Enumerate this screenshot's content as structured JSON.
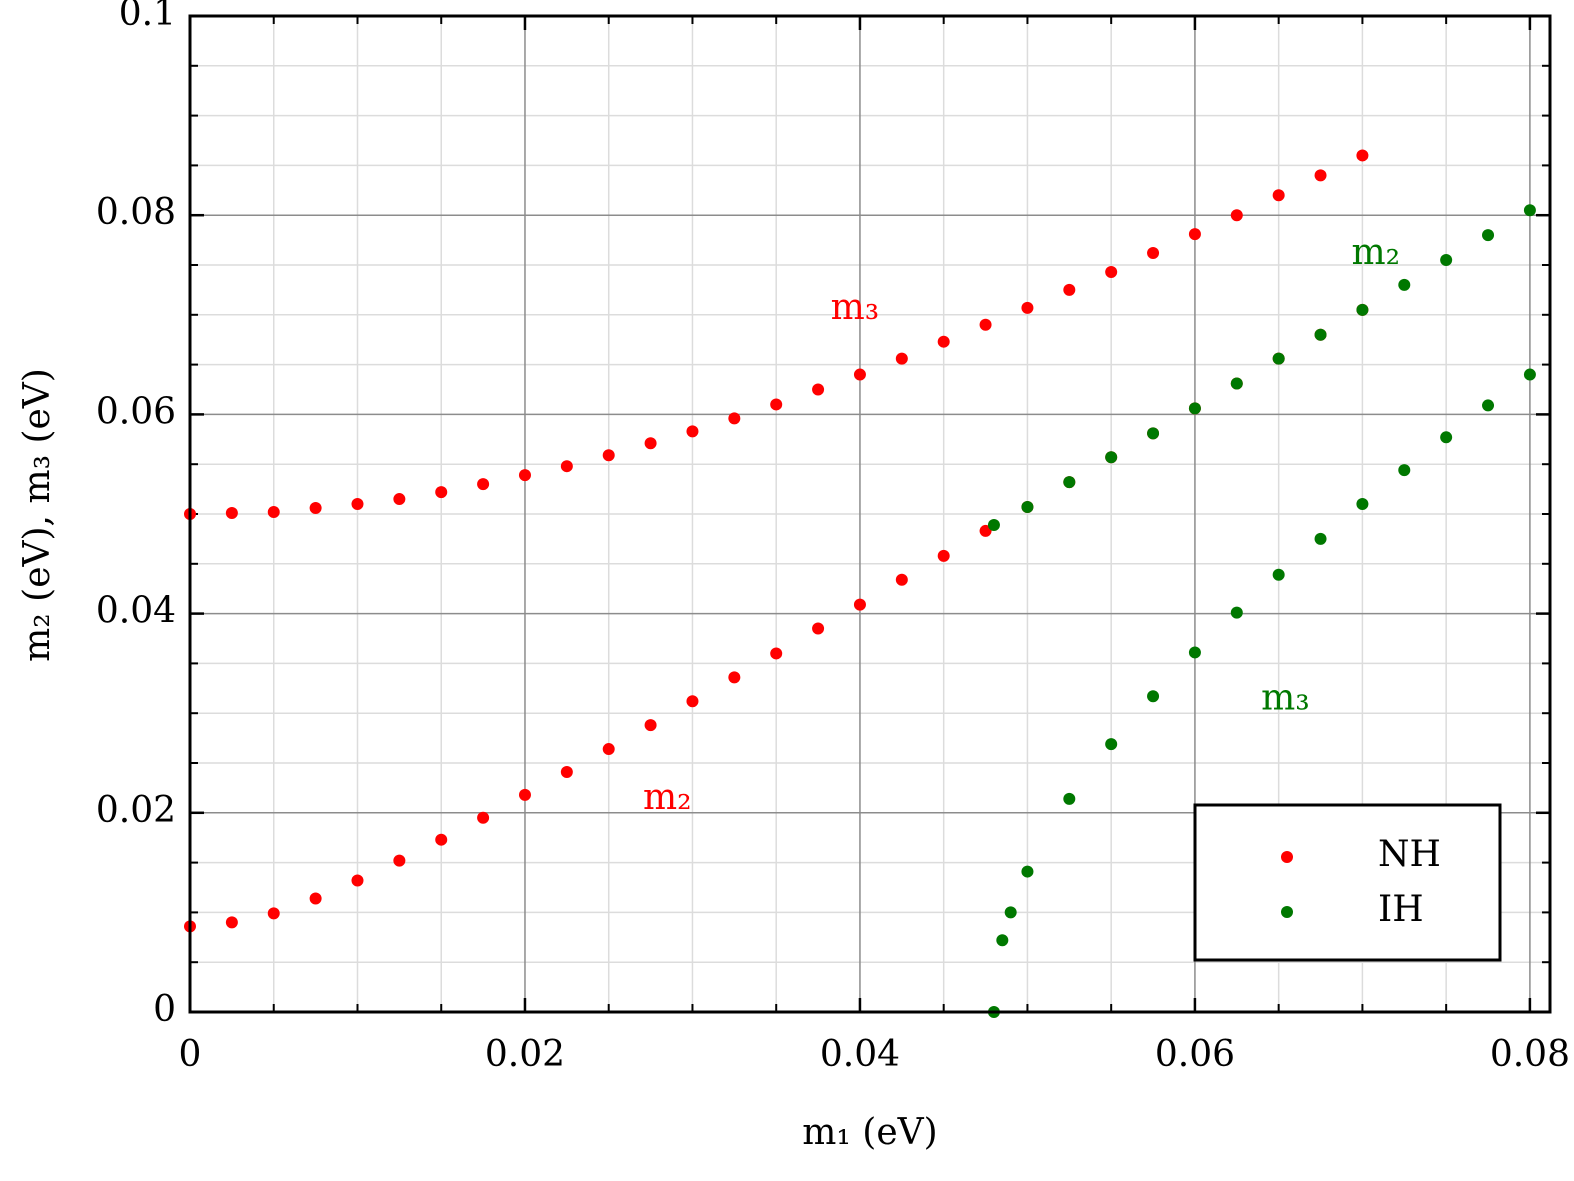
{
  "chart_data": {
    "type": "scatter",
    "xlabel": "m₁ (eV)",
    "ylabel": "m₂ (eV), m₃ (eV)",
    "xlim": [
      0,
      0.0812
    ],
    "ylim": [
      0,
      0.1
    ],
    "xticks": [
      0,
      0.02,
      0.04,
      0.06,
      0.08
    ],
    "yticks": [
      0,
      0.02,
      0.04,
      0.06,
      0.08,
      0.1
    ],
    "xminorticks": [
      0.005,
      0.01,
      0.015,
      0.025,
      0.03,
      0.035,
      0.045,
      0.05,
      0.055,
      0.065,
      0.07,
      0.075
    ],
    "yminorticks": [
      0.005,
      0.01,
      0.015,
      0.025,
      0.03,
      0.035,
      0.045,
      0.05,
      0.055,
      0.065,
      0.07,
      0.075,
      0.085,
      0.09,
      0.095
    ],
    "grid": true,
    "legend": "lower right",
    "series": [
      {
        "name": "NH",
        "color": "#ff0000",
        "x": [
          0,
          0.0025,
          0.005,
          0.0075,
          0.01,
          0.0125,
          0.015,
          0.0175,
          0.02,
          0.0225,
          0.025,
          0.0275,
          0.03,
          0.0325,
          0.035,
          0.0375,
          0.04,
          0.0425,
          0.045,
          0.0475,
          0.05,
          0.0525,
          0.055,
          0.0575,
          0.06,
          0.0625,
          0.065,
          0.0675,
          0.07,
          0,
          0.0025,
          0.005,
          0.0075,
          0.01,
          0.0125,
          0.015,
          0.0175,
          0.02,
          0.0225,
          0.025,
          0.0275,
          0.03,
          0.0325,
          0.035,
          0.0375,
          0.04,
          0.0425,
          0.045,
          0.0475,
          0.05,
          0.0525,
          0.055,
          0.0575,
          0.06,
          0.0625,
          0.065,
          0.0675,
          0.07
        ],
        "values": [
          0.0086,
          0.009,
          0.0099,
          0.0114,
          0.0132,
          0.0152,
          0.0173,
          0.0195,
          0.0218,
          0.0241,
          0.0264,
          0.0288,
          0.0312,
          0.0336,
          0.036,
          0.0385,
          0.0409,
          0.0434,
          0.0458,
          0.0483,
          0.0507,
          0.0532,
          0.0557,
          0.0581,
          0.0606,
          0.0631,
          0.0656,
          0.068,
          0.0705,
          0.05,
          0.0501,
          0.0502,
          0.0506,
          0.051,
          0.0515,
          0.0522,
          0.053,
          0.0539,
          0.0548,
          0.0559,
          0.0571,
          0.0583,
          0.0596,
          0.061,
          0.0625,
          0.064,
          0.0656,
          0.0673,
          0.069,
          0.0707,
          0.0725,
          0.0743,
          0.0762,
          0.0781,
          0.08,
          0.082,
          0.084,
          0.086
        ]
      },
      {
        "name": "IH",
        "color": "#007800",
        "x": [
          0.048,
          0.05,
          0.0525,
          0.055,
          0.0575,
          0.06,
          0.0625,
          0.065,
          0.0675,
          0.07,
          0.0725,
          0.075,
          0.0775,
          0.08,
          0.048,
          0.0485,
          0.049,
          0.05,
          0.0525,
          0.055,
          0.0575,
          0.06,
          0.0625,
          0.065,
          0.0675,
          0.07,
          0.0725,
          0.075,
          0.0775,
          0.08
        ],
        "values": [
          0.0489,
          0.0507,
          0.0532,
          0.0557,
          0.0581,
          0.0606,
          0.0631,
          0.0656,
          0.068,
          0.0705,
          0.073,
          0.0755,
          0.078,
          0.0805,
          0,
          0.0072,
          0.01,
          0.0141,
          0.0214,
          0.0269,
          0.0317,
          0.0361,
          0.0401,
          0.0439,
          0.0475,
          0.051,
          0.0544,
          0.0577,
          0.0609,
          0.064
        ]
      }
    ],
    "annotations": [
      {
        "text": "m₃",
        "x": 0.0397,
        "y": 0.0705,
        "color": "#ff0000"
      },
      {
        "text": "m₂",
        "x": 0.0285,
        "y": 0.0213,
        "color": "#ff0000"
      },
      {
        "text": "m₂",
        "x": 0.0708,
        "y": 0.076,
        "color": "#007800"
      },
      {
        "text": "m₃",
        "x": 0.0654,
        "y": 0.0313,
        "color": "#007800"
      }
    ]
  }
}
